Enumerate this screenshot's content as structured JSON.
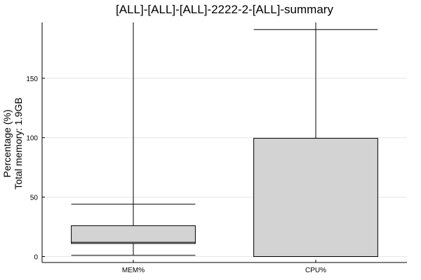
{
  "chart_data": {
    "type": "box",
    "title": "[ALL]-[ALL]-[ALL]-2222-2-[ALL]-summary",
    "ylabel_lines": [
      "Percentage (%)",
      "Total memory: 1.9GB"
    ],
    "xlabel": "",
    "categories": [
      "MEM%",
      "CPU%"
    ],
    "ylim": [
      -5,
      197
    ],
    "yticks": [
      0,
      50,
      100,
      150
    ],
    "grid": true,
    "boxes": [
      {
        "category": "MEM%",
        "min": 1,
        "q1": 11,
        "median": 12,
        "q3": 26,
        "max": 44,
        "line_top": 197
      },
      {
        "category": "CPU%",
        "min": 0,
        "q1": 0,
        "median": 0,
        "q3": 99.5,
        "max": 191,
        "line_top": 197
      }
    ]
  }
}
